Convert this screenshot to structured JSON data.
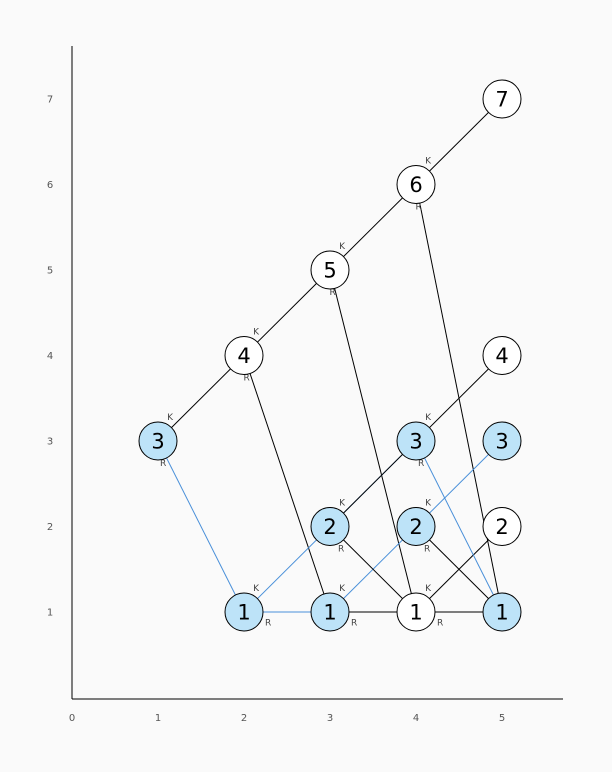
{
  "x_ticks": [
    "0",
    "1",
    "2",
    "3",
    "4",
    "5"
  ],
  "y_ticks": [
    "1",
    "2",
    "3",
    "4",
    "5",
    "6",
    "7"
  ],
  "colors": {
    "highlight_fill": "#bde3f8",
    "plain_fill": "#ffffff",
    "node_stroke": "#000000",
    "edge_black": "#000000",
    "edge_blue": "#4a90d9"
  },
  "nodes": [
    {
      "id": "n1_3",
      "x": 1,
      "y": 3,
      "label": "3",
      "highlight": true
    },
    {
      "id": "n2_4",
      "x": 2,
      "y": 4,
      "label": "4",
      "highlight": false
    },
    {
      "id": "n2_1",
      "x": 2,
      "y": 1,
      "label": "1",
      "highlight": true
    },
    {
      "id": "n3_5",
      "x": 3,
      "y": 5,
      "label": "5",
      "highlight": false
    },
    {
      "id": "n3_2",
      "x": 3,
      "y": 2,
      "label": "2",
      "highlight": true
    },
    {
      "id": "n3_1",
      "x": 3,
      "y": 1,
      "label": "1",
      "highlight": true
    },
    {
      "id": "n4_6",
      "x": 4,
      "y": 6,
      "label": "6",
      "highlight": false
    },
    {
      "id": "n4_3",
      "x": 4,
      "y": 3,
      "label": "3",
      "highlight": true
    },
    {
      "id": "n4_2",
      "x": 4,
      "y": 2,
      "label": "2",
      "highlight": true
    },
    {
      "id": "n4_1",
      "x": 4,
      "y": 1,
      "label": "1",
      "highlight": false
    },
    {
      "id": "n5_7",
      "x": 5,
      "y": 7,
      "label": "7",
      "highlight": false
    },
    {
      "id": "n5_4",
      "x": 5,
      "y": 4,
      "label": "4",
      "highlight": false
    },
    {
      "id": "n5_3",
      "x": 5,
      "y": 3,
      "label": "3",
      "highlight": true
    },
    {
      "id": "n5_2",
      "x": 5,
      "y": 2,
      "label": "2",
      "highlight": false
    },
    {
      "id": "n5_1",
      "x": 5,
      "y": 1,
      "label": "1",
      "highlight": true
    }
  ],
  "edges": [
    {
      "from": "n1_3",
      "to": "n2_4",
      "color": "black"
    },
    {
      "from": "n2_4",
      "to": "n3_5",
      "color": "black"
    },
    {
      "from": "n3_5",
      "to": "n4_6",
      "color": "black"
    },
    {
      "from": "n4_6",
      "to": "n5_7",
      "color": "black"
    },
    {
      "from": "n1_3",
      "to": "n2_1",
      "color": "blue"
    },
    {
      "from": "n2_4",
      "to": "n3_1",
      "color": "black"
    },
    {
      "from": "n3_5",
      "to": "n4_1",
      "color": "black"
    },
    {
      "from": "n4_6",
      "to": "n5_1",
      "color": "black"
    },
    {
      "from": "n2_1",
      "to": "n3_1",
      "color": "blue"
    },
    {
      "from": "n3_1",
      "to": "n4_1",
      "color": "black"
    },
    {
      "from": "n4_1",
      "to": "n5_1",
      "color": "black"
    },
    {
      "from": "n2_1",
      "to": "n4_3",
      "color": "blue"
    },
    {
      "from": "n3_1",
      "to": "n5_3",
      "color": "blue"
    },
    {
      "from": "n3_2",
      "to": "n5_4",
      "color": "black"
    },
    {
      "from": "n3_2",
      "to": "n4_1",
      "color": "black"
    },
    {
      "from": "n4_2",
      "to": "n5_1",
      "color": "black"
    },
    {
      "from": "n4_1",
      "to": "n5_2",
      "color": "black"
    },
    {
      "from": "n4_3",
      "to": "n5_1",
      "color": "blue"
    }
  ],
  "edge_labels": [
    {
      "text": "K",
      "x": 1.14,
      "y": 3.28
    },
    {
      "text": "R",
      "x": 1.06,
      "y": 2.74
    },
    {
      "text": "K",
      "x": 2.14,
      "y": 4.28
    },
    {
      "text": "R",
      "x": 2.03,
      "y": 3.74
    },
    {
      "text": "K",
      "x": 3.14,
      "y": 5.28
    },
    {
      "text": "R",
      "x": 3.03,
      "y": 4.74
    },
    {
      "text": "K",
      "x": 4.14,
      "y": 6.28
    },
    {
      "text": "R",
      "x": 4.03,
      "y": 5.74
    },
    {
      "text": "K",
      "x": 2.14,
      "y": 1.28
    },
    {
      "text": "R",
      "x": 2.28,
      "y": 0.88
    },
    {
      "text": "K",
      "x": 3.14,
      "y": 1.28
    },
    {
      "text": "R",
      "x": 3.28,
      "y": 0.88
    },
    {
      "text": "K",
      "x": 4.14,
      "y": 1.28
    },
    {
      "text": "R",
      "x": 4.28,
      "y": 0.88
    },
    {
      "text": "K",
      "x": 3.14,
      "y": 2.28
    },
    {
      "text": "R",
      "x": 3.13,
      "y": 1.74
    },
    {
      "text": "K",
      "x": 4.14,
      "y": 2.28
    },
    {
      "text": "R",
      "x": 4.13,
      "y": 1.74
    },
    {
      "text": "K",
      "x": 4.14,
      "y": 3.28
    },
    {
      "text": "R",
      "x": 4.06,
      "y": 2.74
    }
  ]
}
